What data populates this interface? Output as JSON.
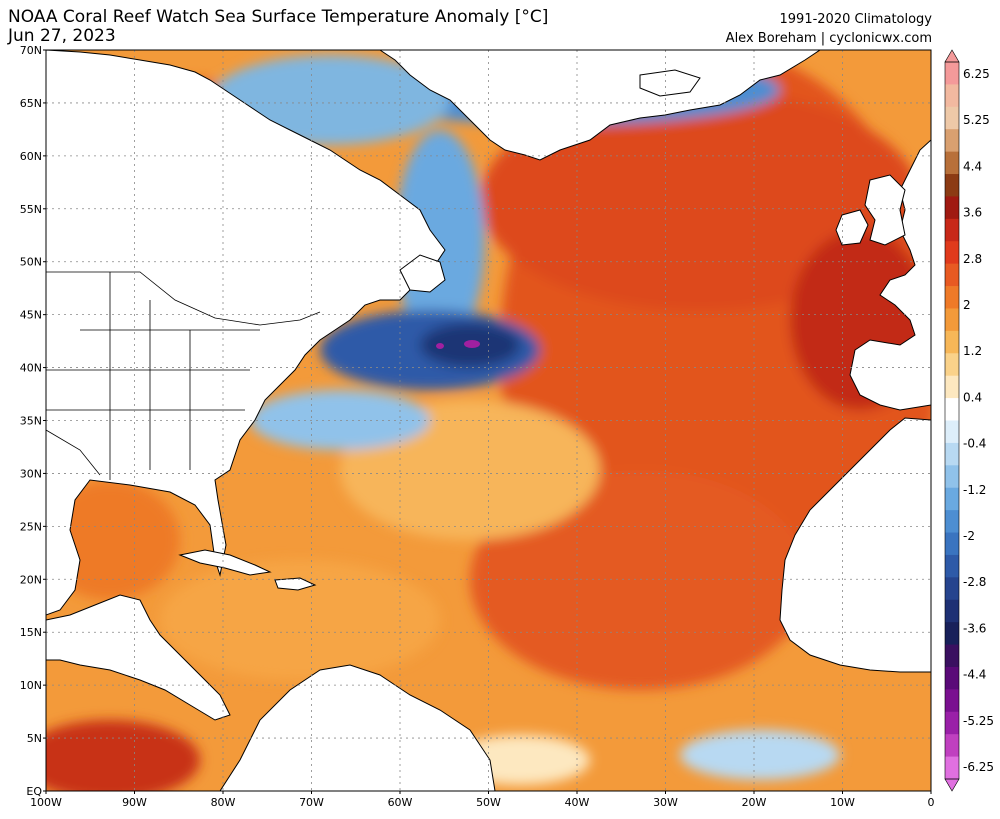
{
  "header": {
    "title_line1": "NOAA Coral Reef Watch Sea Surface Temperature Anomaly [°C]",
    "title_line2": "Jun 27, 2023",
    "climatology": "1991-2020 Climatology",
    "credit": "Alex Boreham | cyclonicwx.com"
  },
  "map": {
    "lat_labels": [
      "70N",
      "65N",
      "60N",
      "55N",
      "50N",
      "45N",
      "40N",
      "35N",
      "30N",
      "25N",
      "20N",
      "15N",
      "10N",
      "5N",
      "EQ"
    ],
    "lon_labels": [
      "100W",
      "90W",
      "80W",
      "70W",
      "60W",
      "50W",
      "40W",
      "30W",
      "20W",
      "10W",
      "0"
    ],
    "colors": {
      "ocean_warm": "#f08a2e",
      "ocean_hot": "#d94a1c",
      "ocean_very_hot": "#b22618",
      "ocean_mild": "#f7b259",
      "ocean_cool": "#7fb6e0",
      "ocean_cold": "#2f6db5",
      "ocean_very_cold": "#1c3f8a",
      "extreme_cold": "#a020a0",
      "land": "#ffffff",
      "coastline": "#000000"
    }
  },
  "colorbar": {
    "labels": [
      "6.25",
      "5.25",
      "4.4",
      "3.6",
      "2.8",
      "2",
      "1.2",
      "0.4",
      "-0.4",
      "-1.2",
      "-2",
      "-2.8",
      "-3.6",
      "-4.4",
      "-5.25",
      "-6.25"
    ],
    "colors": [
      "#f49a9a",
      "#f2b9a0",
      "#eec9a8",
      "#d9a070",
      "#b8703a",
      "#8c3b14",
      "#a01a12",
      "#c82818",
      "#e03a1c",
      "#e85a22",
      "#ef7a28",
      "#f39a3a",
      "#f7b758",
      "#fad28a",
      "#fde8c0",
      "#ffffff",
      "#ddeefa",
      "#b8d9f2",
      "#90c2ea",
      "#6aa9e0",
      "#4d8ed2",
      "#3a74c0",
      "#2e5aa8",
      "#26448e",
      "#1e3074",
      "#18205a",
      "#3a1060",
      "#5a0a78",
      "#7a1090",
      "#9a20a8",
      "#c040c0",
      "#e070e0"
    ]
  }
}
